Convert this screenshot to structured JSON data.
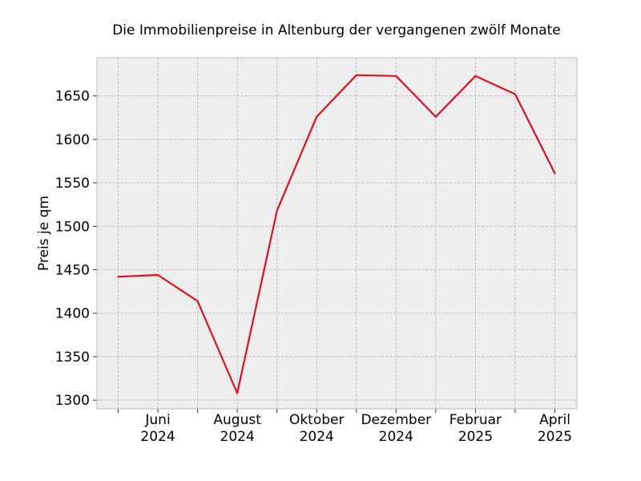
{
  "chart_data": {
    "type": "line",
    "title": "Die Immobilienpreise in Altenburg der vergangenen zwölf Monate",
    "xlabel": "",
    "ylabel": "Preis je qm",
    "x": [
      "2024-05",
      "2024-06",
      "2024-07",
      "2024-08",
      "2024-09",
      "2024-10",
      "2024-11",
      "2024-12",
      "2025-01",
      "2025-02",
      "2025-03",
      "2025-04"
    ],
    "x_tick_labels": [
      {
        "x": "2024-06",
        "line1": "Juni",
        "line2": "2024"
      },
      {
        "x": "2024-08",
        "line1": "August",
        "line2": "2024"
      },
      {
        "x": "2024-10",
        "line1": "Oktober",
        "line2": "2024"
      },
      {
        "x": "2024-12",
        "line1": "Dezember",
        "line2": "2024"
      },
      {
        "x": "2025-02",
        "line1": "Februar",
        "line2": "2025"
      },
      {
        "x": "2025-04",
        "line1": "April",
        "line2": "2025"
      }
    ],
    "series": [
      {
        "values": [
          1442,
          1444,
          1414,
          1308,
          1518,
          1626,
          1674,
          1673,
          1626,
          1673,
          1652,
          1561
        ],
        "color": "#e0101e"
      }
    ],
    "ylim": [
      1290,
      1694
    ],
    "yticks": [
      1300,
      1350,
      1400,
      1450,
      1500,
      1550,
      1600,
      1650
    ],
    "grid": true,
    "legend": "none",
    "background": "#eeeeee"
  }
}
